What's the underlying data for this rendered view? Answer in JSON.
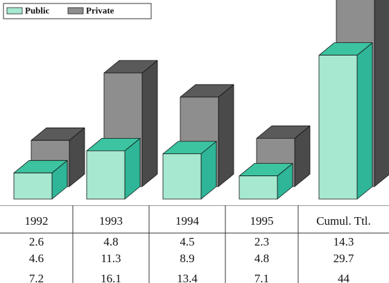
{
  "chart_data": {
    "type": "bar3d",
    "categories": [
      "1992",
      "1993",
      "1994",
      "1995",
      "Cumul. Ttl."
    ],
    "series": [
      {
        "name": "Public",
        "color": "#a6e8d0",
        "values": [
          2.6,
          4.8,
          4.5,
          2.3,
          14.3
        ]
      },
      {
        "name": "Private",
        "color": "#8e8e8e",
        "values": [
          4.6,
          11.3,
          8.9,
          4.8,
          29.7
        ]
      }
    ],
    "totals": [
      7.2,
      16.1,
      13.4,
      7.1,
      44
    ],
    "legend": "top-left"
  }
}
